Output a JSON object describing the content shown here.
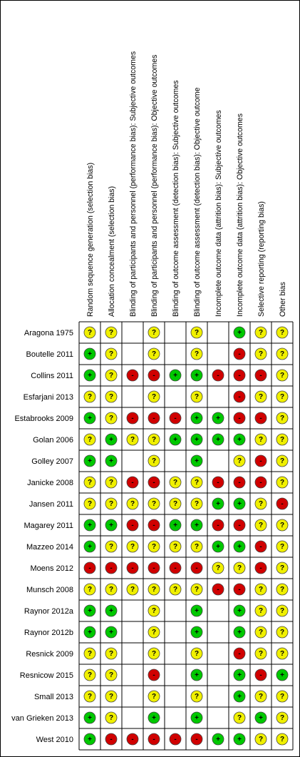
{
  "columns": [
    "Random sequence generation (selection bias)",
    "Allocation concealment (selection bias)",
    "Blinding of participants and personnel (performance bias): Subjective outcomes",
    "Blinding of participants and personnel (performance bias): Objective outcomes",
    "Blinding of outcome assessment (detection bias): Subjective outcomes",
    "Blinding of outcome assessment (detection bias): Objective outcome",
    "Incomplete outcome data (attrition bias): Subjective outcomes",
    "Incomplete outcome data (attrition bias): Objective outcomes",
    "Selective reporting (reporting bias)",
    "Other bias"
  ],
  "rows": [
    {
      "study": "Aragona 1975",
      "judgements": [
        "?",
        "?",
        null,
        "?",
        null,
        "?",
        null,
        "+",
        "?",
        "?"
      ]
    },
    {
      "study": "Boutelle 2011",
      "judgements": [
        "+",
        "?",
        null,
        "?",
        null,
        "?",
        null,
        "-",
        "?",
        "?"
      ]
    },
    {
      "study": "Collins 2011",
      "judgements": [
        "+",
        "?",
        "-",
        "-",
        "+",
        "+",
        "-",
        "-",
        "-",
        "?"
      ]
    },
    {
      "study": "Esfarjani 2013",
      "judgements": [
        "?",
        "?",
        null,
        "?",
        null,
        "?",
        null,
        "-",
        "?",
        "?"
      ]
    },
    {
      "study": "Estabrooks 2009",
      "judgements": [
        "+",
        "?",
        "-",
        "-",
        "-",
        "+",
        "+",
        "-",
        "-",
        "?"
      ]
    },
    {
      "study": "Golan 2006",
      "judgements": [
        "?",
        "+",
        "?",
        "?",
        "+",
        "+",
        "+",
        "+",
        "?",
        "?"
      ]
    },
    {
      "study": "Golley 2007",
      "judgements": [
        "+",
        "+",
        null,
        "?",
        null,
        "+",
        null,
        "?",
        "-",
        "?"
      ]
    },
    {
      "study": "Janicke 2008",
      "judgements": [
        "?",
        "?",
        "-",
        "-",
        "?",
        "?",
        "-",
        "-",
        "-",
        "?"
      ]
    },
    {
      "study": "Jansen 2011",
      "judgements": [
        "?",
        "?",
        "?",
        "?",
        "?",
        "?",
        "+",
        "+",
        "?",
        "-"
      ]
    },
    {
      "study": "Magarey 2011",
      "judgements": [
        "+",
        "+",
        "-",
        "-",
        "+",
        "+",
        "-",
        "-",
        "?",
        "?"
      ]
    },
    {
      "study": "Mazzeo 2014",
      "judgements": [
        "+",
        "?",
        "?",
        "?",
        "?",
        "?",
        "+",
        "+",
        "-",
        "?"
      ]
    },
    {
      "study": "Moens 2012",
      "judgements": [
        "-",
        "-",
        "-",
        "-",
        "-",
        "-",
        "?",
        "?",
        "-",
        "?"
      ]
    },
    {
      "study": "Munsch 2008",
      "judgements": [
        "?",
        "?",
        "?",
        "?",
        "?",
        "?",
        "-",
        "-",
        "?",
        "?"
      ]
    },
    {
      "study": "Raynor 2012a",
      "judgements": [
        "+",
        "+",
        null,
        "?",
        null,
        "+",
        null,
        "+",
        "?",
        "?"
      ]
    },
    {
      "study": "Raynor 2012b",
      "judgements": [
        "+",
        "+",
        null,
        "?",
        null,
        "+",
        null,
        "+",
        "?",
        "?"
      ]
    },
    {
      "study": "Resnick 2009",
      "judgements": [
        "?",
        "?",
        null,
        "?",
        null,
        "?",
        null,
        "-",
        "?",
        "?"
      ]
    },
    {
      "study": "Resnicow 2015",
      "judgements": [
        "?",
        "?",
        null,
        "-",
        null,
        "+",
        null,
        "+",
        "-",
        "+"
      ]
    },
    {
      "study": "Small 2013",
      "judgements": [
        "?",
        "?",
        null,
        "?",
        null,
        "?",
        null,
        "+",
        "?",
        "?"
      ]
    },
    {
      "study": "van Grieken 2013",
      "judgements": [
        "+",
        "?",
        null,
        "+",
        null,
        "+",
        null,
        "?",
        "+",
        "?"
      ]
    },
    {
      "study": "West 2010",
      "judgements": [
        "+",
        "-",
        "-",
        "-",
        "-",
        "-",
        "+",
        "+",
        "?",
        "?"
      ]
    }
  ]
}
